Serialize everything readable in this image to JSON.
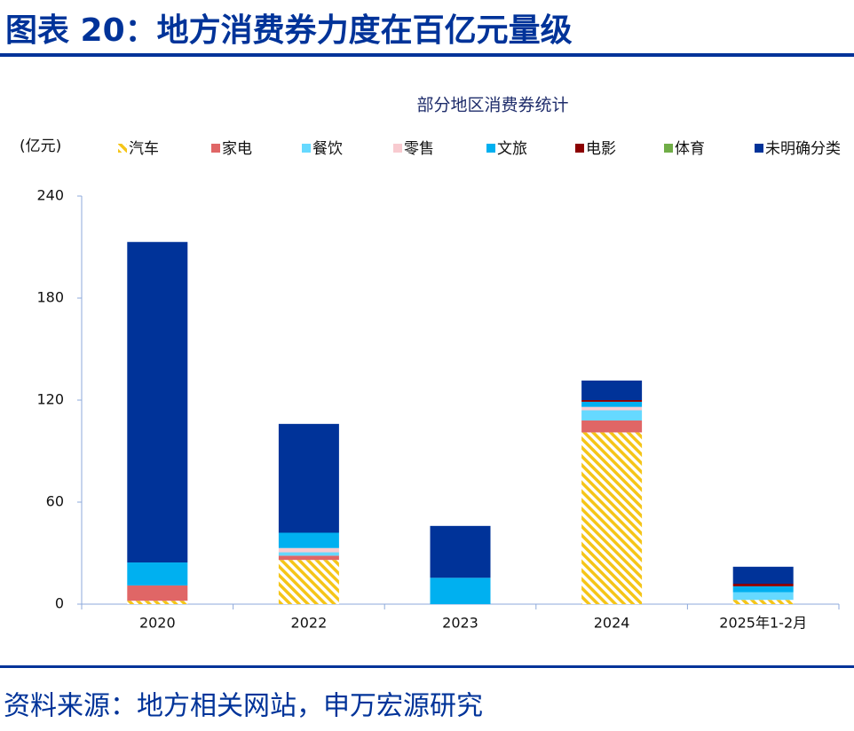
{
  "header": {
    "title": "图表 20：地方消费券力度在百亿元量级"
  },
  "chart_data": {
    "type": "stacked_bar",
    "title": "部分地区消费券统计",
    "y_label": "(亿元)",
    "categories": [
      "2020",
      "2022",
      "2023",
      "2024",
      "2025年1-2月"
    ],
    "series": [
      {
        "name": "汽车",
        "color": "#f5c518",
        "pattern": "diagonal",
        "values": [
          2,
          26,
          null,
          101,
          2.5
        ]
      },
      {
        "name": "家电",
        "color": "#e06666",
        "values": [
          9,
          2.5,
          null,
          7,
          null
        ]
      },
      {
        "name": "餐饮",
        "color": "#66d9ff",
        "values": [
          null,
          2,
          null,
          6,
          4.5
        ]
      },
      {
        "name": "零售",
        "color": "#f8cbd0",
        "values": [
          null,
          2.5,
          null,
          2,
          null
        ]
      },
      {
        "name": "文旅",
        "color": "#00b0f0",
        "values": [
          13.5,
          9,
          15.5,
          3,
          3.5
        ]
      },
      {
        "name": "电影",
        "color": "#8b0000",
        "values": [
          null,
          null,
          null,
          1,
          1.5
        ]
      },
      {
        "name": "体育",
        "color": "#70ad47",
        "values": [
          null,
          null,
          null,
          null,
          null
        ]
      },
      {
        "name": "未明确分类",
        "color": "#003399",
        "values": [
          188.5,
          64,
          30.5,
          11.5,
          10
        ]
      }
    ],
    "ylim": [
      0,
      240
    ],
    "yticks": [
      0,
      60,
      120,
      180,
      240
    ]
  },
  "footer": {
    "source": "资料来源：地方相关网站，申万宏源研究"
  }
}
